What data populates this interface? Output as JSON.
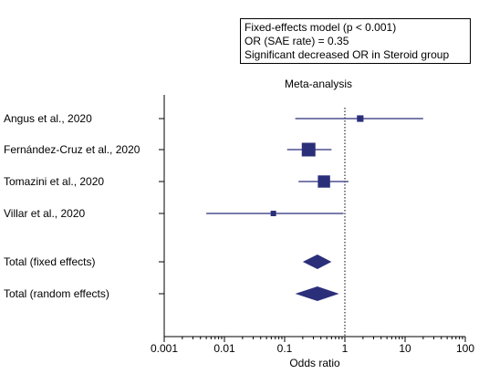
{
  "legend": {
    "line1": "Fixed-effects model (p < 0.001)",
    "line2": "OR (SAE rate) = 0.35",
    "line3": "Significant decreased OR in Steroid group"
  },
  "chart_data": {
    "type": "forest",
    "title": "Meta-analysis",
    "xlabel": "Odds ratio",
    "x_scale": "log",
    "xlim": [
      0.001,
      100
    ],
    "xticks": [
      "0.001",
      "0.01",
      "0.1",
      "1",
      "10",
      "100"
    ],
    "reference_line": 1,
    "color": "#2b2f7a",
    "studies": [
      {
        "label": "Angus et al., 2020",
        "or": 1.8,
        "ci": [
          0.15,
          20.0
        ],
        "weight": 1.0
      },
      {
        "label": "Fernández-Cruz et al., 2020",
        "or": 0.25,
        "ci": [
          0.11,
          0.6
        ],
        "weight": 2.0
      },
      {
        "label": "Tomazini et al., 2020",
        "or": 0.45,
        "ci": [
          0.17,
          1.15
        ],
        "weight": 1.8
      },
      {
        "label": "Villar et al., 2020",
        "or": 0.065,
        "ci": [
          0.005,
          0.95
        ],
        "weight": 0.85
      }
    ],
    "pooled": [
      {
        "label": "Total (fixed effects)",
        "or": 0.35,
        "ci": [
          0.2,
          0.6
        ]
      },
      {
        "label": "Total (random effects)",
        "or": 0.35,
        "ci": [
          0.15,
          0.8
        ]
      }
    ]
  }
}
